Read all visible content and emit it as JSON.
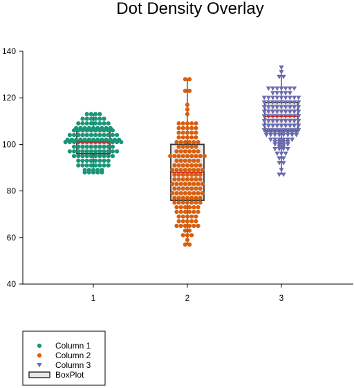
{
  "chart_data": {
    "type": "scatter",
    "title": "Dot Density Overlay",
    "xlabel": "",
    "ylabel": "",
    "categories": [
      "1",
      "2",
      "3"
    ],
    "ylim": [
      40,
      140
    ],
    "yticks": [
      40,
      60,
      80,
      100,
      120,
      140
    ],
    "grid": false,
    "legend_position": "bottom-left",
    "colors": {
      "median": "#cc2222",
      "box_fill": "#e8e8e8",
      "box_edge": "#333333"
    },
    "series": [
      {
        "name": "Column 1",
        "marker": "circle",
        "color": "#1a9577",
        "category": "1",
        "box": {
          "min": 88,
          "q1": 96,
          "median": 101,
          "q3": 106,
          "max": 113
        },
        "values": [
          88,
          88,
          88,
          88,
          88,
          89,
          89,
          89,
          89,
          89,
          91,
          91,
          91,
          91,
          91,
          91,
          91,
          91,
          93,
          93,
          93,
          93,
          93,
          93,
          93,
          93,
          95,
          95,
          95,
          95,
          95,
          95,
          95,
          95,
          95,
          95,
          97,
          97,
          97,
          97,
          97,
          97,
          97,
          97,
          97,
          97,
          97,
          97,
          99,
          99,
          99,
          99,
          99,
          99,
          99,
          99,
          99,
          99,
          101,
          101,
          101,
          101,
          101,
          101,
          101,
          101,
          101,
          101,
          101,
          101,
          101,
          101,
          102,
          102,
          102,
          102,
          102,
          102,
          102,
          102,
          102,
          102,
          102,
          102,
          102,
          104,
          104,
          104,
          104,
          104,
          104,
          104,
          104,
          104,
          104,
          104,
          104,
          106,
          106,
          106,
          106,
          106,
          106,
          106,
          106,
          106,
          106,
          107,
          107,
          107,
          107,
          107,
          107,
          107,
          107,
          107,
          109,
          109,
          109,
          109,
          109,
          109,
          109,
          109,
          111,
          111,
          111,
          111,
          111,
          111,
          113,
          113,
          113,
          113
        ]
      },
      {
        "name": "Column 2",
        "marker": "circle",
        "color": "#d95f0e",
        "category": "2",
        "box": {
          "min": 57,
          "q1": 76,
          "median": 88,
          "q3": 100,
          "max": 128
        },
        "values": [
          57,
          57,
          59,
          61,
          61,
          61,
          63,
          63,
          65,
          65,
          65,
          65,
          65,
          65,
          67,
          67,
          67,
          67,
          67,
          69,
          69,
          69,
          69,
          69,
          71,
          71,
          71,
          71,
          71,
          71,
          73,
          73,
          73,
          73,
          73,
          73,
          75,
          75,
          75,
          75,
          75,
          75,
          75,
          77,
          77,
          77,
          77,
          77,
          77,
          77,
          79,
          79,
          79,
          79,
          79,
          79,
          79,
          79,
          81,
          81,
          81,
          81,
          81,
          81,
          81,
          83,
          83,
          83,
          83,
          83,
          83,
          83,
          83,
          85,
          85,
          85,
          85,
          85,
          85,
          85,
          87,
          87,
          87,
          87,
          87,
          87,
          87,
          89,
          89,
          89,
          89,
          89,
          89,
          89,
          89,
          91,
          91,
          91,
          91,
          91,
          91,
          91,
          93,
          93,
          93,
          93,
          93,
          93,
          95,
          95,
          95,
          95,
          95,
          95,
          95,
          95,
          95,
          97,
          97,
          97,
          97,
          97,
          97,
          99,
          99,
          99,
          99,
          99,
          101,
          101,
          101,
          101,
          101,
          101,
          103,
          103,
          103,
          103,
          103,
          105,
          105,
          105,
          105,
          105,
          107,
          107,
          107,
          107,
          107,
          109,
          109,
          109,
          109,
          109,
          113,
          115,
          117,
          123,
          123,
          128,
          128
        ]
      },
      {
        "name": "Column 3",
        "marker": "triangle-down",
        "color": "#6b6baf",
        "category": "3",
        "box": {
          "min": 87,
          "q1": 106,
          "median": 112,
          "q3": 118,
          "max": 133
        },
        "values": [
          87,
          87,
          89,
          92,
          92,
          94,
          94,
          96,
          96,
          96,
          98,
          98,
          98,
          98,
          99,
          99,
          100,
          100,
          100,
          100,
          101,
          101,
          101,
          101,
          102,
          102,
          102,
          102,
          102,
          102,
          104,
          104,
          104,
          104,
          104,
          104,
          104,
          104,
          105,
          105,
          105,
          105,
          105,
          105,
          105,
          105,
          106,
          106,
          106,
          106,
          106,
          106,
          106,
          106,
          106,
          108,
          108,
          108,
          108,
          108,
          108,
          108,
          108,
          108,
          110,
          110,
          110,
          110,
          110,
          110,
          110,
          110,
          110,
          112,
          112,
          112,
          112,
          112,
          112,
          112,
          112,
          112,
          114,
          114,
          114,
          114,
          114,
          114,
          114,
          114,
          114,
          116,
          116,
          116,
          116,
          116,
          116,
          116,
          116,
          116,
          118,
          118,
          118,
          118,
          118,
          118,
          118,
          118,
          118,
          120,
          120,
          120,
          120,
          120,
          120,
          120,
          120,
          120,
          122,
          122,
          122,
          122,
          122,
          124,
          124,
          124,
          124,
          124,
          124,
          124,
          129,
          129,
          131,
          133
        ]
      }
    ],
    "legend": [
      {
        "label": "Column 1",
        "symbol": "circle",
        "color": "#1a9577"
      },
      {
        "label": "Column 2",
        "symbol": "circle",
        "color": "#d95f0e"
      },
      {
        "label": "Column 3",
        "symbol": "triangle-down",
        "color": "#6b6baf"
      },
      {
        "label": "BoxPlot",
        "symbol": "box",
        "color": "#e8e8e8"
      }
    ]
  }
}
